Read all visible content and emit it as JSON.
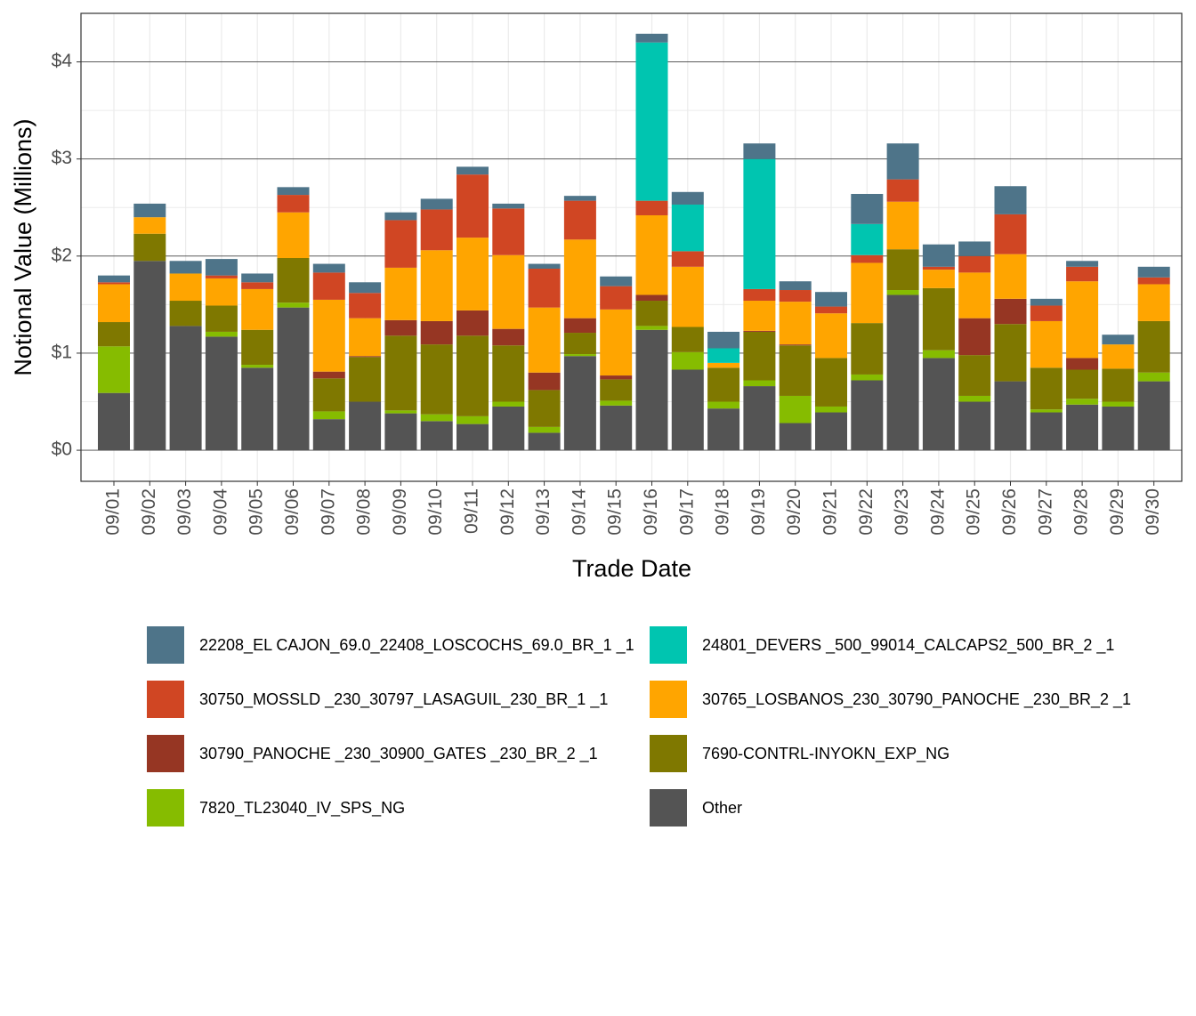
{
  "chart_data": {
    "type": "stacked-bar",
    "x_label": "Trade Date",
    "y_label": "Notional Value (Millions)",
    "categories": [
      "09/01",
      "09/02",
      "09/03",
      "09/04",
      "09/05",
      "09/06",
      "09/07",
      "09/08",
      "09/09",
      "09/10",
      "09/11",
      "09/12",
      "09/13",
      "09/14",
      "09/15",
      "09/16",
      "09/17",
      "09/18",
      "09/19",
      "09/20",
      "09/21",
      "09/22",
      "09/23",
      "09/24",
      "09/25",
      "09/26",
      "09/27",
      "09/28",
      "09/29",
      "09/30"
    ],
    "series": [
      {
        "name": "22208_EL CAJON_69.0_22408_LOSCOCHS_69.0_BR_1 _1",
        "color": "#4e7489",
        "values": [
          0.07,
          0.14,
          0.13,
          0.17,
          0.09,
          0.08,
          0.09,
          0.11,
          0.08,
          0.11,
          0.08,
          0.05,
          0.05,
          0.05,
          0.1,
          0.09,
          0.13,
          0.17,
          0.16,
          0.09,
          0.15,
          0.31,
          0.37,
          0.23,
          0.15,
          0.29,
          0.07,
          0.06,
          0.1,
          0.11
        ]
      },
      {
        "name": "24801_DEVERS  _500_99014_CALCAPS2_500_BR_2 _1",
        "color": "#00c5b0",
        "values": [
          0,
          0,
          0,
          0,
          0,
          0,
          0,
          0,
          0,
          0,
          0,
          0,
          0,
          0,
          0,
          1.63,
          0.48,
          0.15,
          1.34,
          0,
          0,
          0.32,
          0,
          0,
          0,
          0,
          0,
          0,
          0,
          0
        ]
      },
      {
        "name": "30750_MOSSLD  _230_30797_LASAGUIL_230_BR_1 _1",
        "color": "#d04623",
        "values": [
          0.02,
          0,
          0,
          0.03,
          0.07,
          0.18,
          0.28,
          0.26,
          0.49,
          0.42,
          0.65,
          0.48,
          0.4,
          0.4,
          0.24,
          0.15,
          0.16,
          0,
          0.12,
          0.12,
          0.07,
          0.08,
          0.23,
          0.03,
          0.17,
          0.41,
          0.16,
          0.15,
          0,
          0.07
        ]
      },
      {
        "name": "30765_LOSBANOS_230_30790_PANOCHE _230_BR_2 _1",
        "color": "#ffa500",
        "values": [
          0.39,
          0.17,
          0.28,
          0.28,
          0.42,
          0.47,
          0.74,
          0.39,
          0.54,
          0.73,
          0.75,
          0.76,
          0.67,
          0.81,
          0.68,
          0.82,
          0.62,
          0.05,
          0.31,
          0.44,
          0.46,
          0.62,
          0.49,
          0.19,
          0.47,
          0.46,
          0.48,
          0.79,
          0.25,
          0.38
        ]
      },
      {
        "name": "30790_PANOCHE _230_30900_GATES   _230_BR_2 _1",
        "color": "#963623",
        "values": [
          0,
          0,
          0,
          0,
          0,
          0,
          0.07,
          0.01,
          0.16,
          0.24,
          0.26,
          0.17,
          0.18,
          0.15,
          0.04,
          0.06,
          0,
          0,
          0.01,
          0.01,
          0,
          0,
          0,
          0,
          0.38,
          0.26,
          0,
          0.12,
          0,
          0
        ]
      },
      {
        "name": "7690-CONTRL-INYOKN_EXP_NG",
        "color": "#7f7800",
        "values": [
          0.25,
          0.28,
          0.26,
          0.27,
          0.36,
          0.46,
          0.34,
          0.46,
          0.77,
          0.72,
          0.83,
          0.58,
          0.38,
          0.22,
          0.22,
          0.26,
          0.26,
          0.35,
          0.5,
          0.52,
          0.5,
          0.53,
          0.42,
          0.64,
          0.42,
          0.59,
          0.43,
          0.3,
          0.34,
          0.53
        ]
      },
      {
        "name": "7820_TL23040_IV_SPS_NG",
        "color": "#86bc00",
        "values": [
          0.48,
          0,
          0,
          0.05,
          0.03,
          0.05,
          0.08,
          0,
          0.03,
          0.07,
          0.08,
          0.05,
          0.06,
          0.02,
          0.05,
          0.04,
          0.18,
          0.07,
          0.06,
          0.28,
          0.06,
          0.06,
          0.05,
          0.08,
          0.06,
          0,
          0.03,
          0.06,
          0.05,
          0.09
        ]
      },
      {
        "name": "Other",
        "color": "#545454",
        "values": [
          0.59,
          1.95,
          1.28,
          1.17,
          0.85,
          1.47,
          0.32,
          0.5,
          0.38,
          0.3,
          0.27,
          0.45,
          0.18,
          0.97,
          0.46,
          1.24,
          0.83,
          0.43,
          0.66,
          0.28,
          0.39,
          0.72,
          1.6,
          0.95,
          0.5,
          0.71,
          0.39,
          0.47,
          0.45,
          0.71
        ]
      }
    ],
    "ylim": [
      -0.32,
      4.5
    ],
    "yticks": [
      {
        "value": 0,
        "label": "$0"
      },
      {
        "value": 1,
        "label": "$1"
      },
      {
        "value": 2,
        "label": "$2"
      },
      {
        "value": 3,
        "label": "$3"
      },
      {
        "value": 4,
        "label": "$4"
      }
    ],
    "yminorticks": [
      0.5,
      1.5,
      2.5,
      3.5
    ],
    "grid": true,
    "legend": "bottom"
  }
}
